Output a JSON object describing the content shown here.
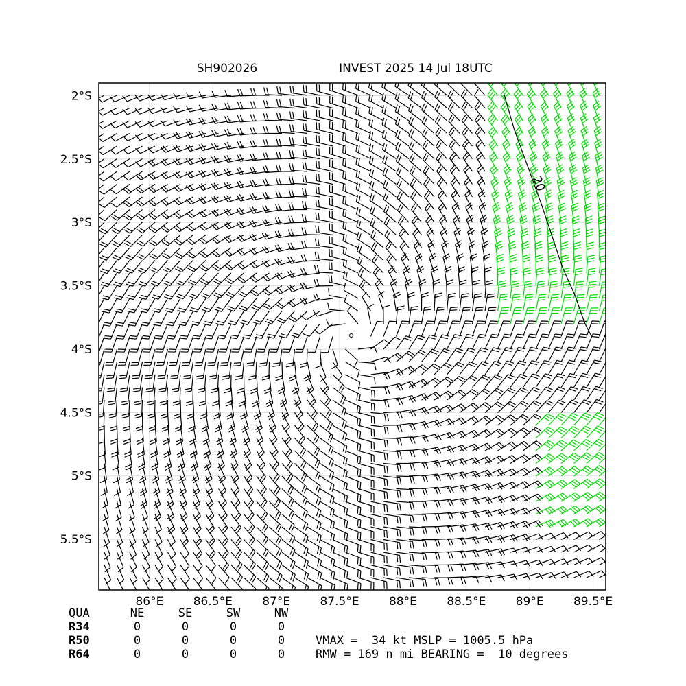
{
  "map": {
    "title_left": "SH902026",
    "title_right": "INVEST 2025 14 Jul 18UTC",
    "xlim": [
      85.6,
      89.6
    ],
    "ylim": [
      -5.9,
      -1.9
    ],
    "xticks": [
      {
        "value": 86,
        "label": "86°E"
      },
      {
        "value": 86.5,
        "label": "86.5°E"
      },
      {
        "value": 87,
        "label": "87°E"
      },
      {
        "value": 87.5,
        "label": "87.5°E"
      },
      {
        "value": 88,
        "label": "88°E"
      },
      {
        "value": 88.5,
        "label": "88.5°E"
      },
      {
        "value": 89,
        "label": "89°E"
      },
      {
        "value": 89.5,
        "label": "89.5°E"
      }
    ],
    "yticks": [
      {
        "value": -2,
        "label": "2°S"
      },
      {
        "value": -2.5,
        "label": "2.5°S"
      },
      {
        "value": -3,
        "label": "3°S"
      },
      {
        "value": -3.5,
        "label": "3.5°S"
      },
      {
        "value": -4,
        "label": "4°S"
      },
      {
        "value": -4.5,
        "label": "4.5°S"
      },
      {
        "value": -5,
        "label": "5°S"
      },
      {
        "value": -5.5,
        "label": "5.5°S"
      }
    ],
    "grid": true,
    "contour_label": "20"
  },
  "table": {
    "header": [
      "QUA",
      "NE",
      "SE",
      "SW",
      "NW"
    ],
    "rows": [
      [
        "R34",
        0,
        0,
        0,
        0
      ],
      [
        "R50",
        0,
        0,
        0,
        0
      ],
      [
        "R64",
        0,
        0,
        0,
        0
      ]
    ]
  },
  "info": [
    "VMAX =  34 kt MSLP = 1005.5 hPa",
    "RMW = 169 n mi BEARING =  10 degrees"
  ]
}
